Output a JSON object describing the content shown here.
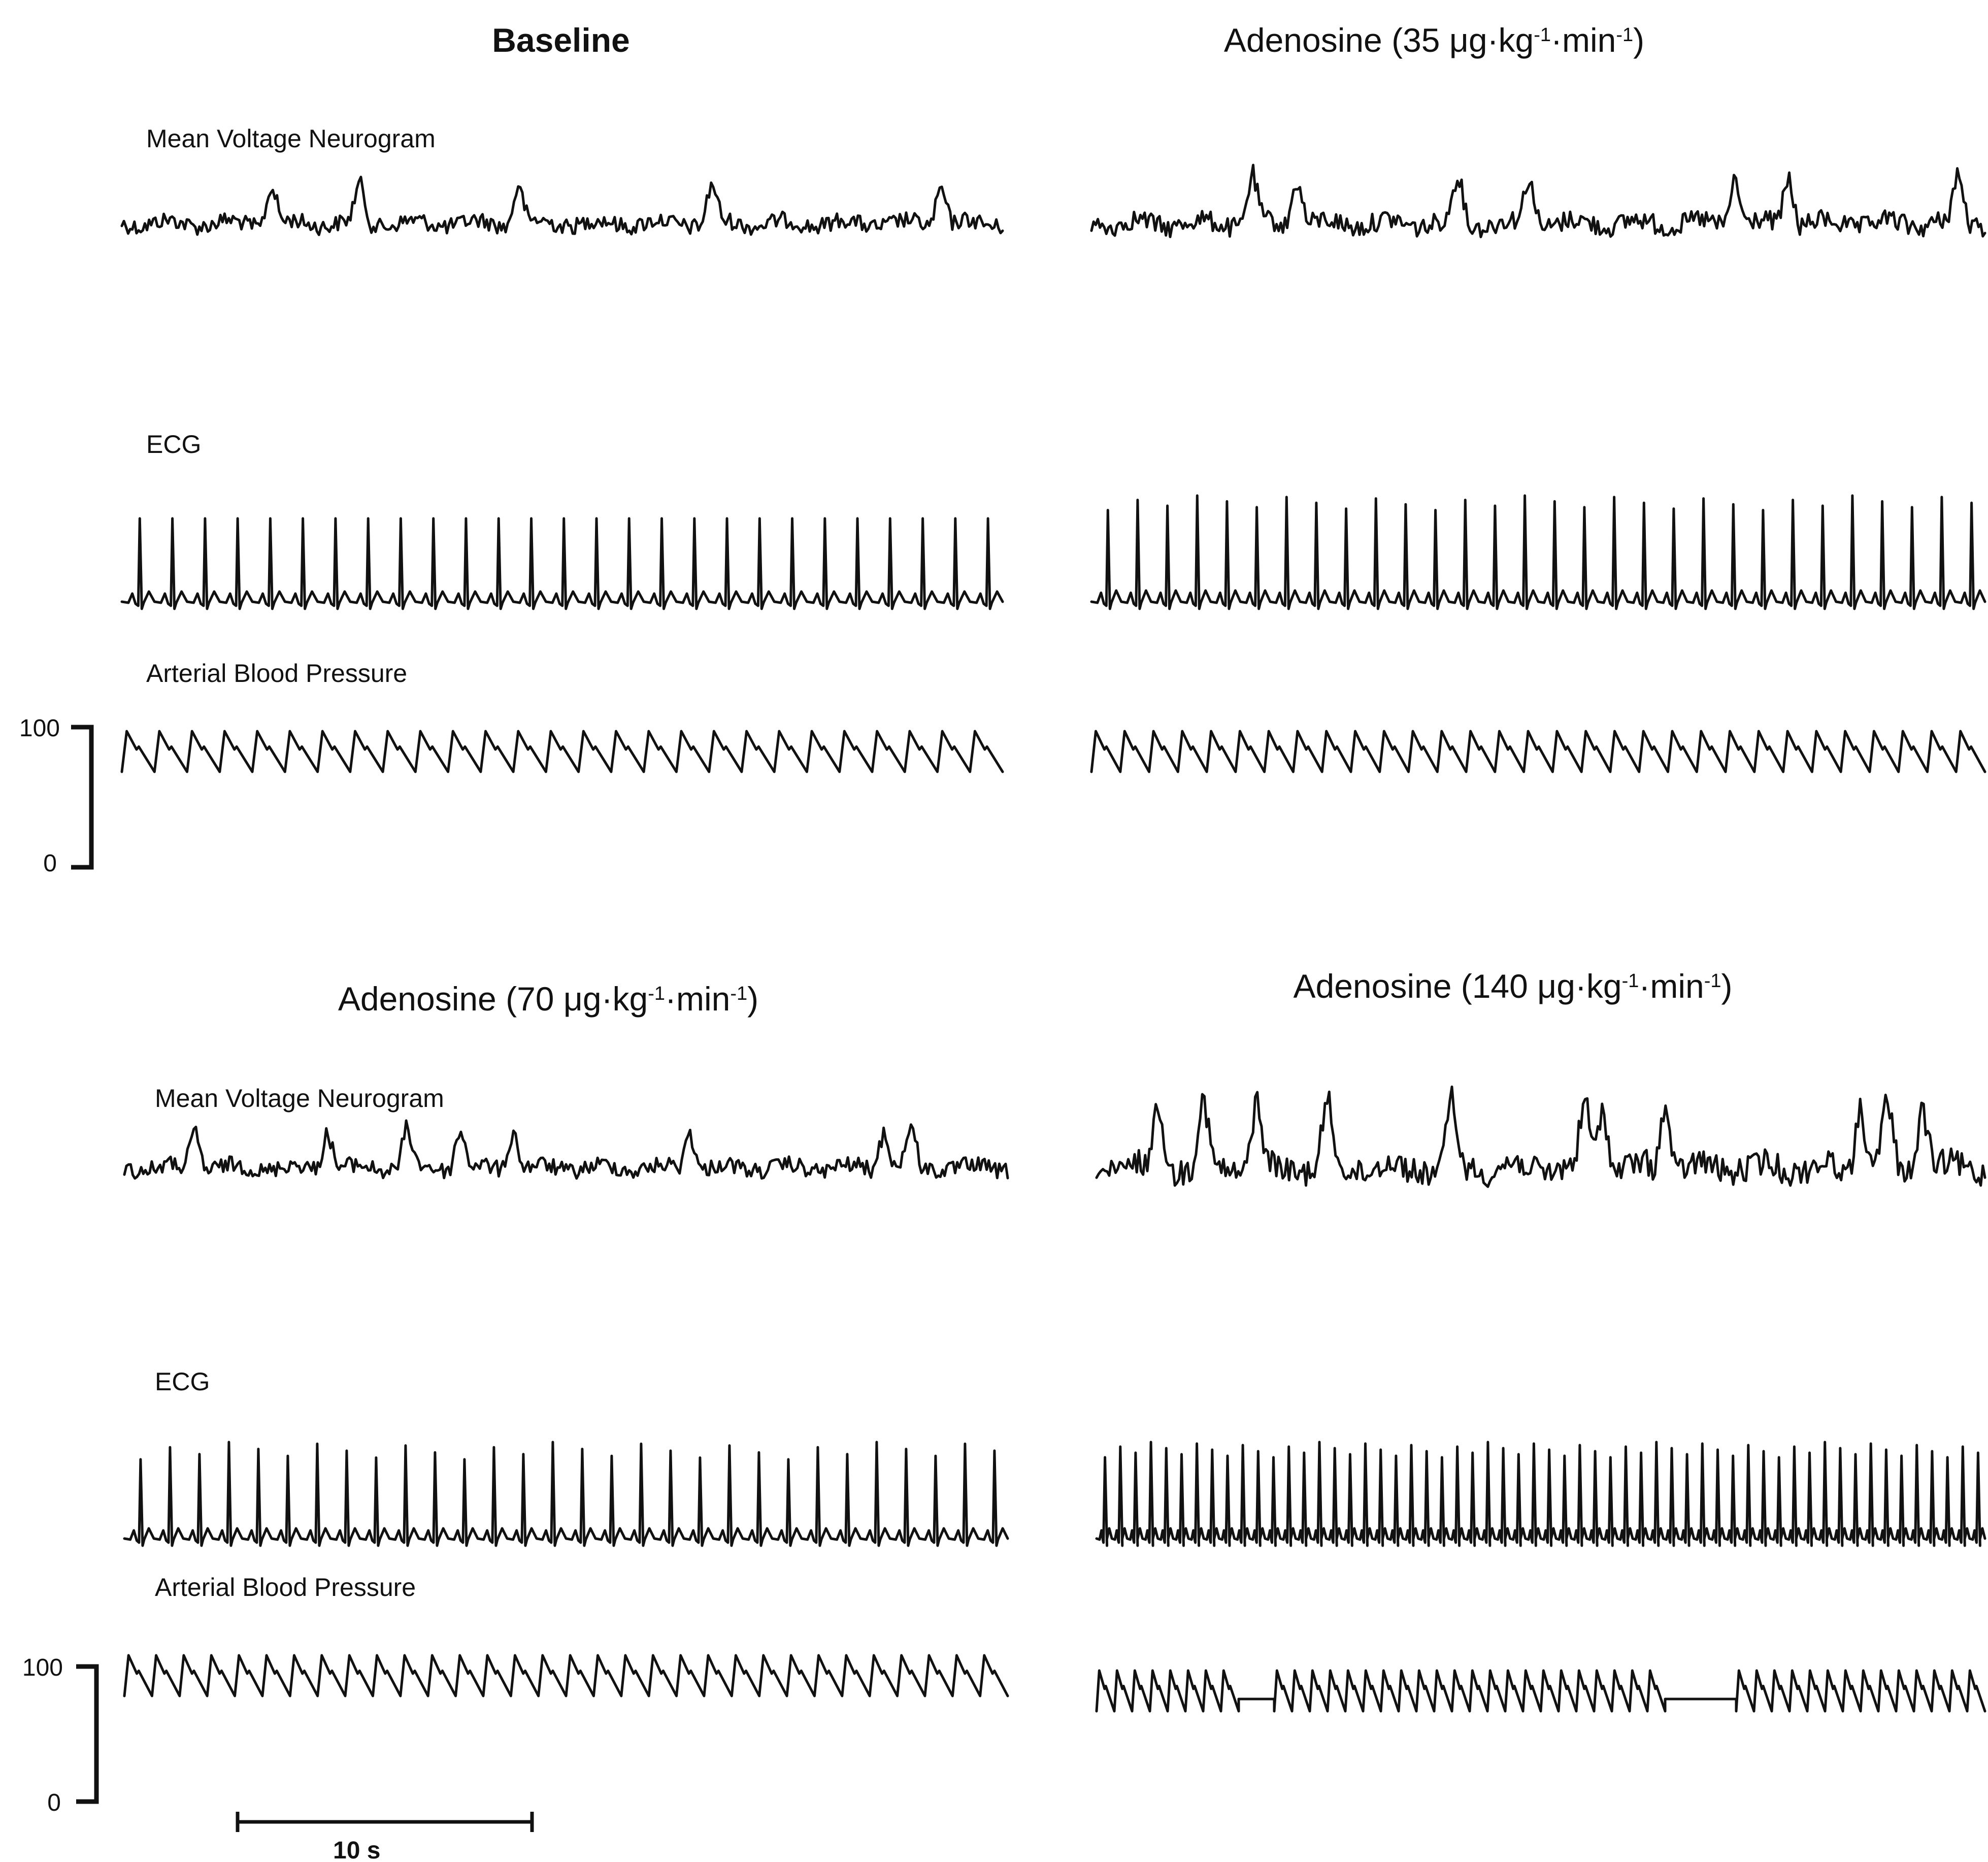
{
  "chart_data": [
    {
      "type": "line",
      "title": "Baseline",
      "title_bold": true,
      "series": [
        {
          "name": "Mean Voltage Neurogram",
          "kind": "neurogram",
          "beats": 0,
          "burst_positions": [
            0.17,
            0.27,
            0.45,
            0.67,
            0.93
          ]
        },
        {
          "name": "ECG",
          "kind": "ecg",
          "beats": 27,
          "amplitude": [
            0.82,
            0.82
          ]
        },
        {
          "name": "Arterial Blood Pressure",
          "kind": "abp",
          "beats": 27
        }
      ],
      "y_scale": {
        "unit_top": "100",
        "unit_bottom": "0"
      }
    },
    {
      "type": "line",
      "title": "Adenosine (35 μg·kg",
      "title_sup1": "-1",
      "title_mid": "·min",
      "title_sup2": "-1",
      "title_end": ")",
      "series": [
        {
          "name": "",
          "kind": "neurogram",
          "beats": 0,
          "burst_positions": [
            0.18,
            0.23,
            0.41,
            0.49,
            0.72,
            0.78,
            0.97
          ]
        },
        {
          "name": "",
          "kind": "ecg",
          "beats": 30,
          "amplitude": [
            0.82,
            0.95
          ]
        },
        {
          "name": "",
          "kind": "abp",
          "beats": 31
        }
      ]
    },
    {
      "type": "line",
      "title": "Adenosine (70 μg·kg",
      "title_sup1": "-1",
      "title_mid": "·min",
      "title_sup2": "-1",
      "title_end": ")",
      "series": [
        {
          "name": "Mean Voltage Neurogram",
          "kind": "neurogram",
          "beats": 0,
          "burst_positions": [
            0.08,
            0.23,
            0.32,
            0.38,
            0.44,
            0.64,
            0.86,
            0.89
          ]
        },
        {
          "name": "ECG",
          "kind": "ecg",
          "beats": 30,
          "amplitude": [
            0.78,
            0.95
          ]
        },
        {
          "name": "Arterial Blood Pressure",
          "kind": "abp",
          "beats": 32
        }
      ],
      "y_scale": {
        "unit_top": "100",
        "unit_bottom": "0"
      },
      "time_bar": {
        "label": "10 s",
        "seconds": 10
      }
    },
    {
      "type": "line",
      "title": "Adenosine (140 μg·kg",
      "title_sup1": "-1",
      "title_mid": "·min",
      "title_sup2": "-1",
      "title_end": ")",
      "series": [
        {
          "name": "",
          "kind": "neurogram",
          "beats": 0,
          "burst_positions": [
            0.07,
            0.12,
            0.18,
            0.26,
            0.4,
            0.55,
            0.57,
            0.64,
            0.86,
            0.89,
            0.93
          ]
        },
        {
          "name": "",
          "kind": "ecg",
          "beats": 58,
          "amplitude": [
            0.8,
            0.95
          ]
        },
        {
          "name": "",
          "kind": "abp",
          "beats": 50,
          "flat_segments": [
            [
              0.17,
              0.2
            ],
            [
              0.64,
              0.72
            ]
          ]
        }
      ]
    }
  ]
}
